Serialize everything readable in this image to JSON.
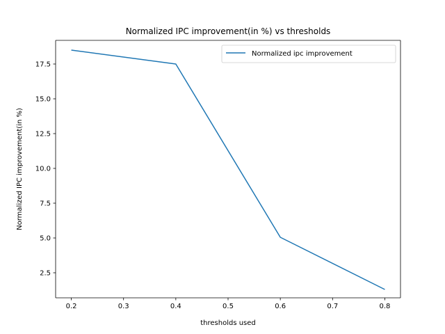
{
  "chart_data": {
    "type": "line",
    "title": "Normalized IPC improvement(in %) vs thresholds",
    "xlabel": "thresholds used",
    "ylabel": "Normalized IPC improvement(in %)",
    "xlim": [
      0.17,
      0.83
    ],
    "ylim": [
      0.7,
      19.2
    ],
    "x_ticks": [
      "0.2",
      "0.3",
      "0.4",
      "0.5",
      "0.6",
      "0.7",
      "0.8"
    ],
    "y_ticks": [
      "2.5",
      "5.0",
      "7.5",
      "10.0",
      "12.5",
      "15.0",
      "17.5"
    ],
    "legend_position": "top-right",
    "grid": false,
    "series": [
      {
        "name": "Normalized ipc improvement",
        "color": "#1f77b4",
        "x": [
          0.2,
          0.4,
          0.6,
          0.8
        ],
        "y": [
          18.5,
          17.5,
          5.05,
          1.3
        ]
      }
    ]
  }
}
